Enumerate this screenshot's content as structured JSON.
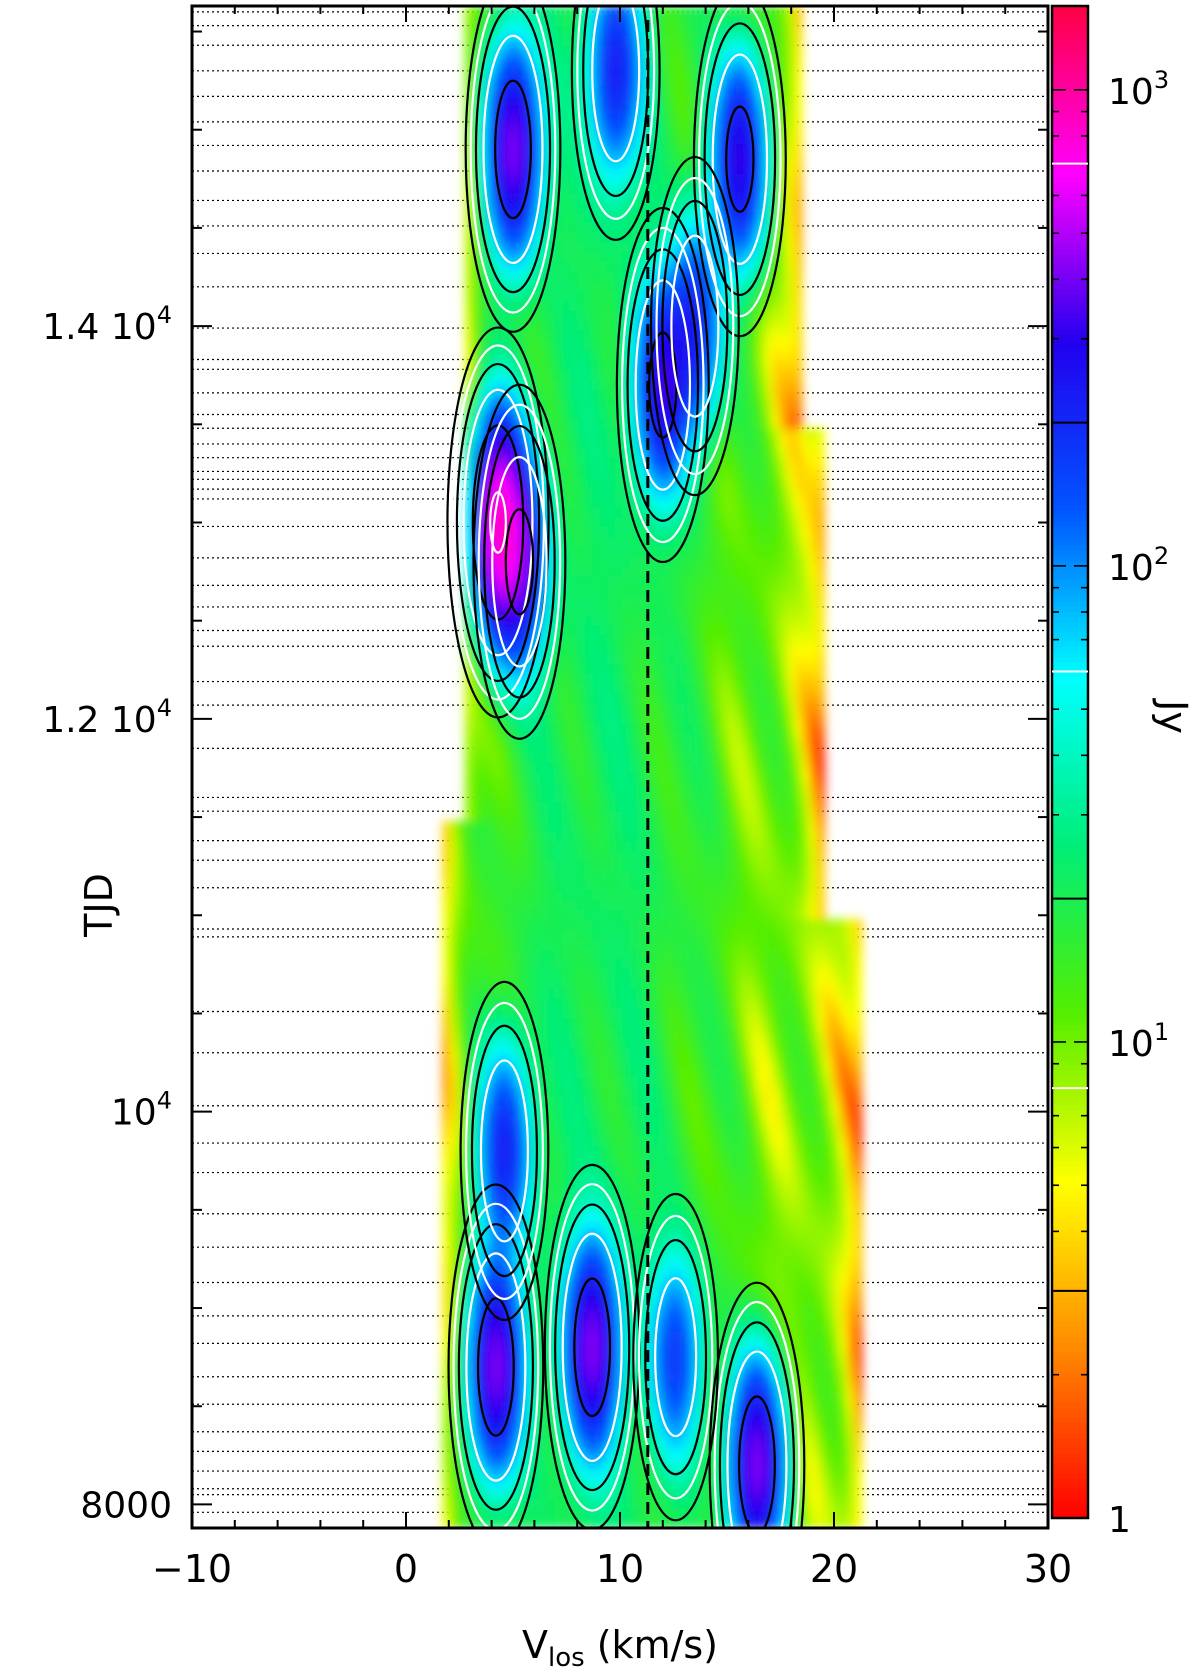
{
  "chart_data": {
    "type": "heatmap",
    "title": "",
    "xlabel": {
      "main": "V",
      "sub": "los",
      "unit": "(km/s)"
    },
    "ylabel": "TJD",
    "xlim": [
      -10,
      30
    ],
    "ylim": [
      7880,
      15630
    ],
    "x_ticks": [
      {
        "value": -10,
        "label": "−10"
      },
      {
        "value": 0,
        "label": "0"
      },
      {
        "value": 10,
        "label": "10"
      },
      {
        "value": 20,
        "label": "20"
      },
      {
        "value": 30,
        "label": "30"
      }
    ],
    "y_ticks": [
      {
        "value": 8000,
        "label": "8000",
        "sup": ""
      },
      {
        "value": 10000,
        "label": "10",
        "sup": "4"
      },
      {
        "value": 12000,
        "label": "1.2 10",
        "sup": "4"
      },
      {
        "value": 14000,
        "label": "1.4 10",
        "sup": "4"
      }
    ],
    "colorbar": {
      "label": "Jy",
      "scale": "log",
      "range": [
        1,
        1500
      ],
      "ticks": [
        {
          "value": 1,
          "label": "1",
          "sup": ""
        },
        {
          "value": 10,
          "label": "10",
          "sup": "1"
        },
        {
          "value": 100,
          "label": "10",
          "sup": "2"
        },
        {
          "value": 1000,
          "label": "10",
          "sup": "3"
        }
      ],
      "colors": [
        "#ff0000",
        "#ff8800",
        "#ffff00",
        "#55ee00",
        "#00ee77",
        "#00ffff",
        "#0055ff",
        "#2200ee",
        "#ff00ff",
        "#ff0044"
      ],
      "contour_levels": [
        3,
        8,
        20,
        60,
        200,
        700
      ]
    },
    "reference_velocity": 11.3,
    "observation_epochs_tjd": [
      7960,
      8050,
      8080,
      8170,
      8270,
      8370,
      8510,
      8650,
      8820,
      8960,
      9130,
      9310,
      9480,
      9690,
      9840,
      10030,
      10300,
      10510,
      10890,
      10930,
      11140,
      11280,
      11380,
      11530,
      11600,
      11850,
      12070,
      12190,
      12370,
      12450,
      12570,
      12680,
      12820,
      12980,
      13120,
      13170,
      13220,
      13260,
      13330,
      13400,
      13480,
      13550,
      13660,
      13780,
      13830,
      13990,
      14200,
      14370,
      14510,
      14640,
      14790,
      14920,
      15040,
      15170,
      15300,
      15430,
      15530,
      15600
    ],
    "emission_structure": {
      "velocity_range": [
        2,
        21
      ],
      "components": [
        {
          "v": 4.2,
          "tjd": 8700,
          "peak_jy": 400
        },
        {
          "v": 8.7,
          "tjd": 8800,
          "peak_jy": 400
        },
        {
          "v": 16.4,
          "tjd": 8200,
          "peak_jy": 400
        },
        {
          "v": 12.6,
          "tjd": 8750,
          "peak_jy": 150
        },
        {
          "v": 4.6,
          "tjd": 9800,
          "peak_jy": 200
        },
        {
          "v": 4.3,
          "tjd": 13000,
          "peak_jy": 800
        },
        {
          "v": 5.3,
          "tjd": 12800,
          "peak_jy": 300
        },
        {
          "v": 5.0,
          "tjd": 14900,
          "peak_jy": 400
        },
        {
          "v": 15.6,
          "tjd": 14850,
          "peak_jy": 300
        },
        {
          "v": 12.0,
          "tjd": 13700,
          "peak_jy": 300
        },
        {
          "v": 9.8,
          "tjd": 15300,
          "peak_jy": 200
        },
        {
          "v": 13.5,
          "tjd": 14000,
          "peak_jy": 200
        }
      ]
    }
  }
}
